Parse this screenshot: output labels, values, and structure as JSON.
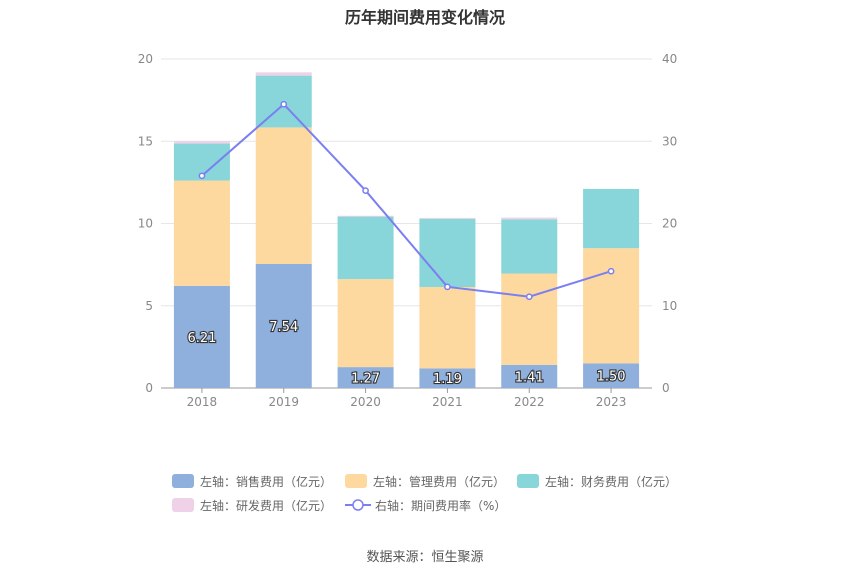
{
  "chart_data": {
    "type": "bar",
    "title": "历年期间费用变化情况",
    "categories": [
      "2018",
      "2019",
      "2020",
      "2021",
      "2022",
      "2023"
    ],
    "stacked": true,
    "y_left": {
      "ticks": [
        "0",
        "5",
        "10",
        "15",
        "20"
      ],
      "range": [
        0,
        20
      ]
    },
    "y_right": {
      "ticks": [
        "0",
        "10",
        "20",
        "30",
        "40"
      ],
      "range": [
        0,
        40
      ]
    },
    "series": [
      {
        "name": "左轴：销售费用（亿元）",
        "type": "bar",
        "axis": "left",
        "color": "#8fb0dc",
        "values": [
          6.21,
          7.54,
          1.27,
          1.19,
          1.41,
          1.5
        ],
        "labels": [
          "6.21",
          "7.54",
          "1.27",
          "1.19",
          "1.41",
          "1.50"
        ]
      },
      {
        "name": "左轴：管理费用（亿元）",
        "type": "bar",
        "axis": "left",
        "color": "#fdd99f",
        "values": [
          6.4,
          8.3,
          5.35,
          4.95,
          5.55,
          7.0
        ]
      },
      {
        "name": "左轴：财务费用（亿元）",
        "type": "bar",
        "axis": "left",
        "color": "#88d5da",
        "values": [
          2.25,
          3.15,
          3.8,
          4.15,
          3.3,
          3.6
        ]
      },
      {
        "name": "左轴：研发费用（亿元）",
        "type": "bar",
        "axis": "left",
        "color": "#f0d2e8",
        "values": [
          0.15,
          0.2,
          0.05,
          0.05,
          0.1,
          0.0
        ]
      },
      {
        "name": "右轴：期间费用率（%）",
        "type": "line",
        "axis": "right",
        "color": "#7b7ff0",
        "values": [
          25.8,
          34.5,
          24.0,
          12.3,
          11.1,
          14.2
        ]
      }
    ],
    "grid": true,
    "legend_position": "bottom"
  },
  "source": "数据来源：恒生聚源"
}
